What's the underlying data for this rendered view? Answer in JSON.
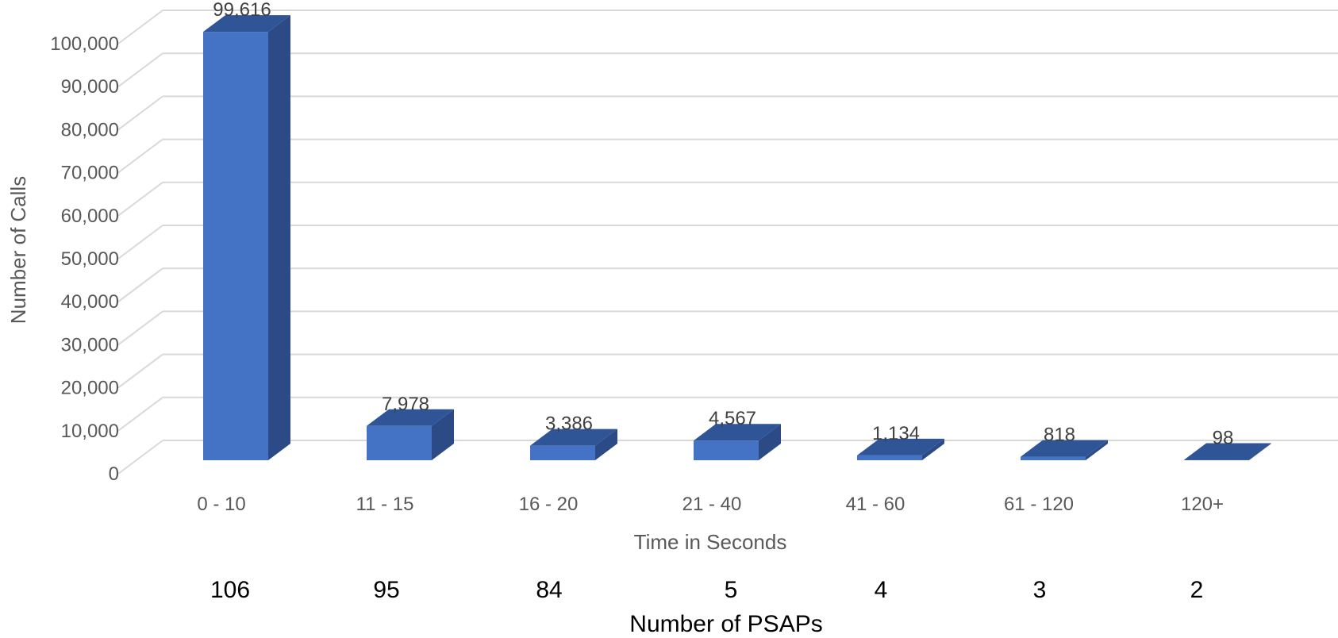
{
  "chart_data": {
    "type": "bar",
    "style": "3d-column",
    "categories": [
      "0 - 10",
      "11 - 15",
      "16 - 20",
      "21 - 40",
      "41 - 60",
      "61 - 120",
      "120+"
    ],
    "values": [
      99616,
      7978,
      3386,
      4567,
      1134,
      818,
      98
    ],
    "data_labels": [
      "99,616",
      "7,978",
      "3,386",
      "4,567",
      "1,134",
      "818",
      "98"
    ],
    "xlabel": "Time in Seconds",
    "ylabel": "Number of Calls",
    "ylim": [
      0,
      100000
    ],
    "yticks": [
      0,
      10000,
      20000,
      30000,
      40000,
      50000,
      60000,
      70000,
      80000,
      90000,
      100000
    ],
    "ytick_labels": [
      "0",
      "10,000",
      "20,000",
      "30,000",
      "40,000",
      "50,000",
      "60,000",
      "70,000",
      "80,000",
      "90,000",
      "100,000"
    ],
    "grid": true,
    "legend": "none",
    "secondary_row": {
      "title": "Number of PSAPs",
      "values": [
        "106",
        "95",
        "84",
        "5",
        "4",
        "3",
        "2"
      ]
    },
    "colors": {
      "bar_front": "#4472C4",
      "bar_top": "#2F5597",
      "bar_side": "#2B4A86",
      "grid": "#D9D9D9"
    }
  }
}
